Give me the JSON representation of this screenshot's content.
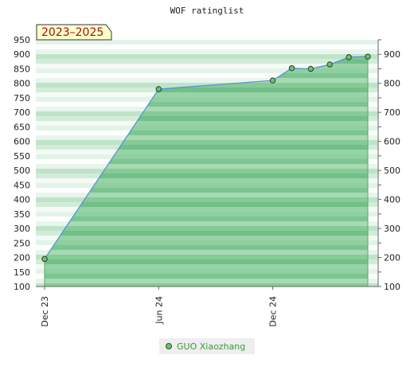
{
  "chart_data": {
    "type": "area",
    "title": "WOF ratinglist",
    "period_label": "2023–2025",
    "y_ticks": [
      100,
      150,
      200,
      250,
      300,
      350,
      400,
      450,
      500,
      550,
      600,
      650,
      700,
      750,
      800,
      850,
      900,
      950
    ],
    "y_right_ticks": [
      100,
      200,
      300,
      400,
      500,
      600,
      700,
      800,
      900
    ],
    "ylim": [
      100,
      950
    ],
    "x_ticks": [
      {
        "label": "Dec 23",
        "x": 0
      },
      {
        "label": "Jun 24",
        "x": 6
      },
      {
        "label": "Dec 24",
        "x": 12
      }
    ],
    "series": [
      {
        "name": "GUO Xiaozhang",
        "color": "#6fbf73",
        "points": [
          {
            "x": 0,
            "y": 195
          },
          {
            "x": 6,
            "y": 780
          },
          {
            "x": 12,
            "y": 810
          },
          {
            "x": 13,
            "y": 852
          },
          {
            "x": 14,
            "y": 850
          },
          {
            "x": 15,
            "y": 865
          },
          {
            "x": 16,
            "y": 890
          },
          {
            "x": 17,
            "y": 892
          }
        ]
      }
    ],
    "grid": true,
    "legend": "bottom-center"
  }
}
